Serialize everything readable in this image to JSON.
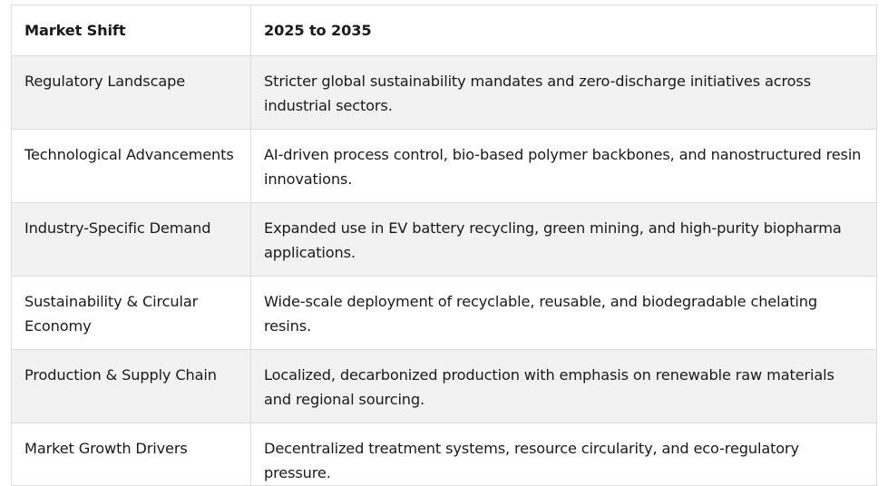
{
  "table": {
    "headers": [
      "Market Shift",
      "2025 to 2035"
    ],
    "rows": [
      [
        "Regulatory Landscape",
        "Stricter global sustainability mandates and zero-discharge initiatives across industrial sectors."
      ],
      [
        "Technological Advancements",
        "AI-driven process control, bio-based polymer backbones, and nanostructured resin innovations."
      ],
      [
        "Industry-Specific Demand",
        "Expanded use in EV battery recycling, green mining, and high-purity biopharma applications."
      ],
      [
        "Sustainability & Circular Economy",
        "Wide-scale deployment of recyclable, reusable, and biodegradable chelating resins."
      ],
      [
        "Production & Supply Chain",
        "Localized, decarbonized production with emphasis on renewable raw materials and regional sourcing."
      ],
      [
        "Market Growth Drivers",
        "Decentralized treatment systems, resource circularity, and eco-regulatory pressure."
      ]
    ]
  },
  "colors": {
    "border": "#dcdcdc",
    "row_alt": "#f2f2f2",
    "text": "#1a1a1a"
  }
}
